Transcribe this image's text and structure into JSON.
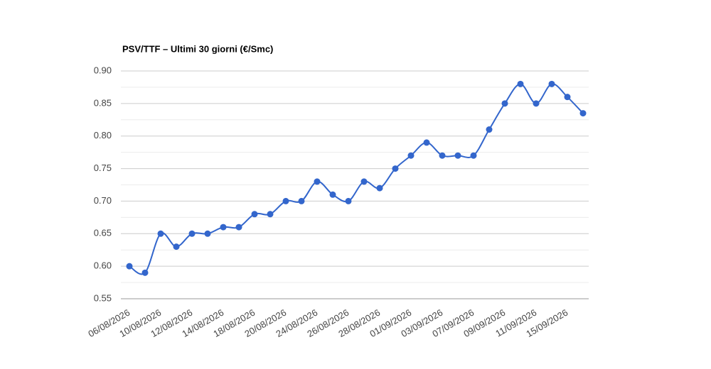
{
  "chart_data": {
    "type": "line",
    "title": "PSV/TTF – Ultimi 30 giorni (€/Smc)",
    "categories": [
      "06/08/2026",
      null,
      "10/08/2026",
      null,
      "12/08/2026",
      null,
      "14/08/2026",
      null,
      "18/08/2026",
      null,
      "20/08/2026",
      null,
      "24/08/2026",
      null,
      "26/08/2026",
      null,
      "28/08/2026",
      null,
      "01/09/2026",
      null,
      "03/09/2026",
      null,
      "07/09/2026",
      null,
      "09/09/2026",
      null,
      "11/09/2026",
      null,
      "15/09/2026",
      null
    ],
    "values": [
      0.6,
      0.59,
      0.65,
      0.63,
      0.65,
      0.65,
      0.66,
      0.66,
      0.68,
      0.68,
      0.7,
      0.7,
      0.73,
      0.71,
      0.7,
      0.73,
      0.72,
      0.75,
      0.77,
      0.79,
      0.77,
      0.77,
      0.77,
      0.81,
      0.85,
      0.88,
      0.85,
      0.88,
      0.86,
      0.835
    ],
    "color": "#3366cc",
    "ylim": [
      0.55,
      0.9
    ],
    "yticks": [
      0.55,
      {
        "value": 0.6,
        "label": "0.60"
      },
      0.65,
      {
        "value": 0.7,
        "label": "0.70"
      },
      0.75,
      {
        "value": 0.8,
        "label": "0.80"
      },
      0.85,
      {
        "value": 0.9,
        "label": "0.90"
      }
    ],
    "grid": true
  }
}
